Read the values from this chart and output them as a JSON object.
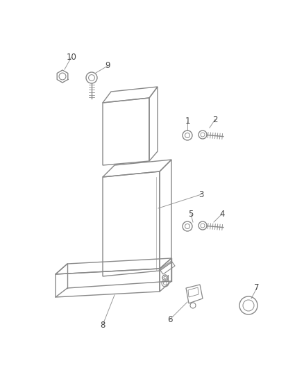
{
  "background_color": "#ffffff",
  "line_color": "#888888",
  "label_color": "#444444",
  "fig_width": 4.38,
  "fig_height": 5.33,
  "dpi": 100
}
